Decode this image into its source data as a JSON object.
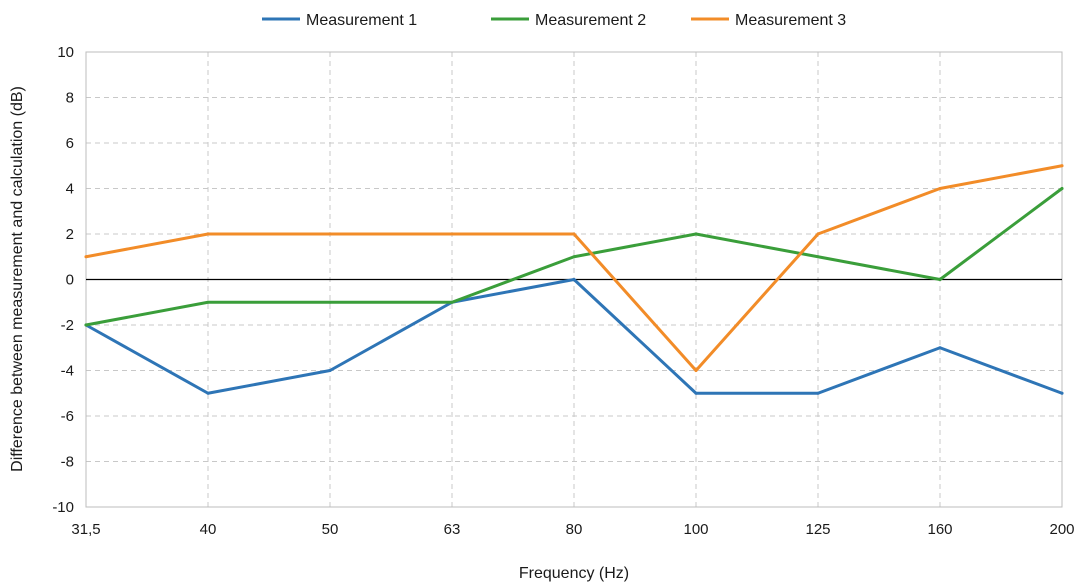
{
  "chart_data": {
    "type": "line",
    "xlabel": "Frequency (Hz)",
    "ylabel": "Difference between measurement and calculation (dB)",
    "categories": [
      "31,5",
      "40",
      "50",
      "63",
      "80",
      "100",
      "125",
      "160",
      "200"
    ],
    "ylim": [
      -10,
      10
    ],
    "yticks": [
      -10,
      -8,
      -6,
      -4,
      -2,
      0,
      2,
      4,
      6,
      8,
      10
    ],
    "grid": true,
    "legend_position": "top-center",
    "series": [
      {
        "name": "Measurement 1",
        "color": "#2E75B6",
        "values": [
          -2,
          -5,
          -4,
          -1,
          0,
          -5,
          -5,
          -3,
          -5
        ]
      },
      {
        "name": "Measurement 2",
        "color": "#3A9E3A",
        "values": [
          -2,
          -1,
          -1,
          -1,
          1,
          2,
          1,
          0,
          4
        ]
      },
      {
        "name": "Measurement 3",
        "color": "#F28C28",
        "values": [
          1,
          2,
          2,
          2,
          2,
          -4,
          2,
          4,
          5
        ]
      }
    ]
  }
}
